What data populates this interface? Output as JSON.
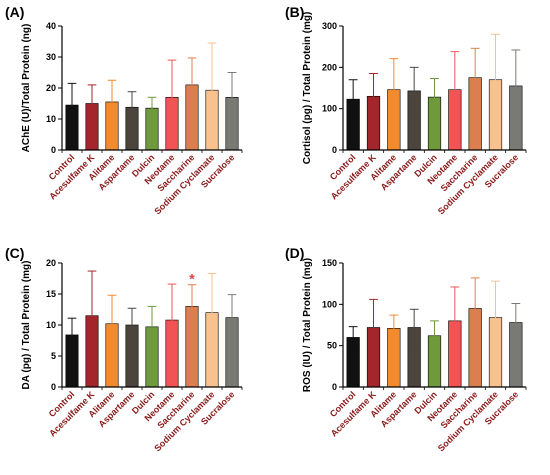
{
  "colors": {
    "Control": "#111111",
    "Acesulfame K": "#a2262b",
    "Alitame": "#f28a2e",
    "Aspartame": "#4b453d",
    "Dulcin": "#6f9a3b",
    "Neotame": "#f05454",
    "Saccharine": "#dc7f50",
    "Sodium Cyclamate": "#f8c18d",
    "Sucralose": "#7a7a75",
    "label_text": "#8b1a1a",
    "significance": "#e04040"
  },
  "chart_data": [
    {
      "panel": "(A)",
      "type": "bar",
      "ylabel": "AChE (U)/Total Protein (ng)",
      "ylim": [
        0,
        40
      ],
      "yticks": [
        0,
        10,
        20,
        30,
        40
      ],
      "categories": [
        "Control",
        "Acesulfame K",
        "Alitame",
        "Aspartame",
        "Dulcin",
        "Neotame",
        "Saccharine",
        "Sodium Cyclamate",
        "Sucralose"
      ],
      "values": [
        14.5,
        15.0,
        15.5,
        13.8,
        13.5,
        17.0,
        21.0,
        19.3,
        17.0
      ],
      "errors": [
        7.0,
        6.0,
        7.0,
        5.0,
        3.5,
        12.0,
        8.7,
        15.2,
        8.0
      ],
      "significance": []
    },
    {
      "panel": "(B)",
      "type": "bar",
      "ylabel": "Cortisol (pg) / Total Protein (mg)",
      "ylim": [
        0,
        300
      ],
      "yticks": [
        0,
        100,
        200,
        300
      ],
      "categories": [
        "Control",
        "Acesulfame K",
        "Alitame",
        "Aspartame",
        "Dulcin",
        "Neotame",
        "Saccharine",
        "Sodium Cyclamate",
        "Sucralose"
      ],
      "values": [
        123,
        130,
        146,
        143,
        128,
        146,
        175,
        170,
        155
      ],
      "errors": [
        47,
        55,
        75,
        57,
        45,
        92,
        71,
        110,
        87
      ],
      "significance": []
    },
    {
      "panel": "(C)",
      "type": "bar",
      "ylabel": "DA (pg) / Total Protein (mg)",
      "ylim": [
        0,
        20
      ],
      "yticks": [
        0,
        5,
        10,
        15,
        20
      ],
      "categories": [
        "Control",
        "Acesulfame K",
        "Alitame",
        "Aspartame",
        "Dulcin",
        "Neotame",
        "Saccharine",
        "Sodium Cyclamate",
        "Sucralose"
      ],
      "values": [
        8.4,
        11.5,
        10.2,
        10.0,
        9.7,
        10.8,
        13.0,
        12.0,
        11.2
      ],
      "errors": [
        2.7,
        7.2,
        4.6,
        2.7,
        3.3,
        5.8,
        3.5,
        6.3,
        3.7
      ],
      "significance": [
        {
          "category": "Saccharine",
          "mark": "*"
        }
      ]
    },
    {
      "panel": "(D)",
      "type": "bar",
      "ylabel": "ROS (IU) / Total Protein (mg)",
      "ylim": [
        0,
        150
      ],
      "yticks": [
        0,
        50,
        100,
        150
      ],
      "categories": [
        "Control",
        "Acesulfame K",
        "Alitame",
        "Aspartame",
        "Dulcin",
        "Neotame",
        "Saccharine",
        "Sodium Cyclamate",
        "Sucralose"
      ],
      "values": [
        60,
        72,
        71,
        72,
        62,
        80,
        95,
        84,
        78
      ],
      "errors": [
        13,
        34,
        16,
        22,
        18,
        41,
        37,
        44,
        23
      ],
      "significance": []
    }
  ]
}
